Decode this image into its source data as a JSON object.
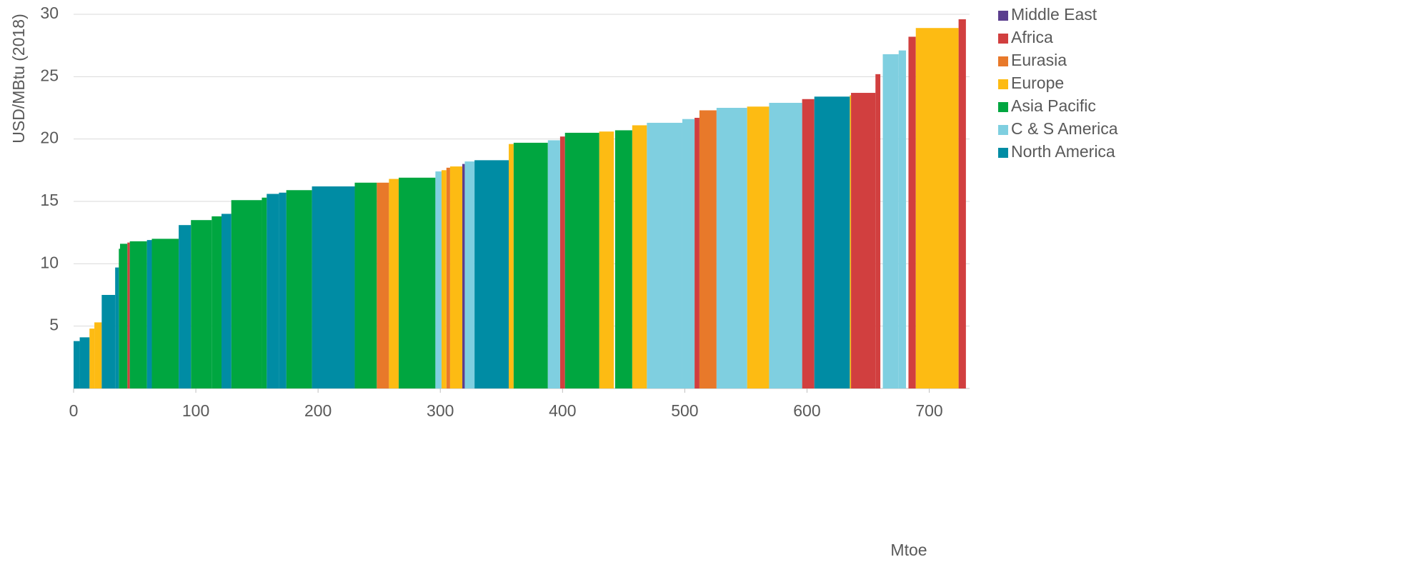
{
  "chart_data": {
    "type": "variwide",
    "y_label": "USD/MBtu (2018)",
    "x_label": "Mtoe",
    "xlim": [
      0,
      733
    ],
    "ylim": [
      0,
      30
    ],
    "xticks": [
      0,
      100,
      200,
      300,
      400,
      500,
      600,
      700
    ],
    "yticks": [
      5,
      10,
      15,
      20,
      25,
      30
    ],
    "grid": true,
    "series": [
      {
        "name": "Middle East",
        "color": "#5b3e8e",
        "x_start": [
          318
        ],
        "x_end": [
          320
        ],
        "values": [
          18.0
        ]
      },
      {
        "name": "Africa",
        "color": "#d13f3f",
        "x_start": [
          44,
          398,
          508,
          596,
          636,
          656,
          683,
          724
        ],
        "x_end": [
          46,
          402,
          512,
          606,
          656,
          660,
          689,
          730
        ],
        "values": [
          11.7,
          20.2,
          21.7,
          23.2,
          23.7,
          25.2,
          28.2,
          29.6
        ]
      },
      {
        "name": "Eurasia",
        "color": "#e8792a",
        "x_start": [
          248,
          305,
          512
        ],
        "x_end": [
          258,
          308,
          526
        ],
        "values": [
          16.5,
          17.7,
          22.3
        ]
      },
      {
        "name": "Europe",
        "color": "#fdbb13",
        "x_start": [
          13,
          17,
          258,
          301,
          308,
          356,
          430,
          457,
          551,
          635,
          689
        ],
        "x_end": [
          17,
          23,
          266,
          305,
          318,
          360,
          442,
          469,
          569,
          636,
          724
        ],
        "values": [
          4.8,
          5.3,
          16.8,
          17.5,
          17.8,
          19.6,
          20.6,
          21.1,
          22.6,
          23.5,
          28.9
        ]
      },
      {
        "name": "Asia Pacific",
        "color": "#00a640",
        "x_start": [
          37,
          38,
          46,
          64,
          96,
          113,
          129,
          154,
          174,
          230,
          266,
          360,
          402,
          443
        ],
        "x_end": [
          38,
          44,
          60,
          86,
          113,
          121,
          154,
          158,
          195,
          248,
          296,
          388,
          430,
          457
        ],
        "values": [
          11.2,
          11.6,
          11.8,
          12.0,
          13.5,
          13.8,
          15.1,
          15.3,
          15.9,
          16.5,
          16.9,
          19.7,
          20.5,
          20.7
        ]
      },
      {
        "name": "C & S America",
        "color": "#7fcfe0",
        "x_start": [
          296,
          320,
          388,
          469,
          498,
          526,
          569,
          662,
          675
        ],
        "x_end": [
          301,
          328,
          398,
          498,
          508,
          551,
          596,
          675,
          681
        ],
        "values": [
          17.4,
          18.2,
          19.9,
          21.3,
          21.6,
          22.5,
          22.9,
          26.8,
          27.1
        ]
      },
      {
        "name": "North America",
        "color": "#008ca4",
        "x_start": [
          0,
          5,
          23,
          34,
          60,
          86,
          121,
          158,
          168,
          195,
          328,
          606
        ],
        "x_end": [
          5,
          13,
          34,
          37,
          64,
          96,
          129,
          168,
          174,
          230,
          356,
          635
        ],
        "values": [
          3.8,
          4.1,
          7.5,
          9.7,
          11.9,
          13.1,
          14.0,
          15.6,
          15.7,
          16.2,
          18.3,
          23.4
        ]
      }
    ]
  }
}
